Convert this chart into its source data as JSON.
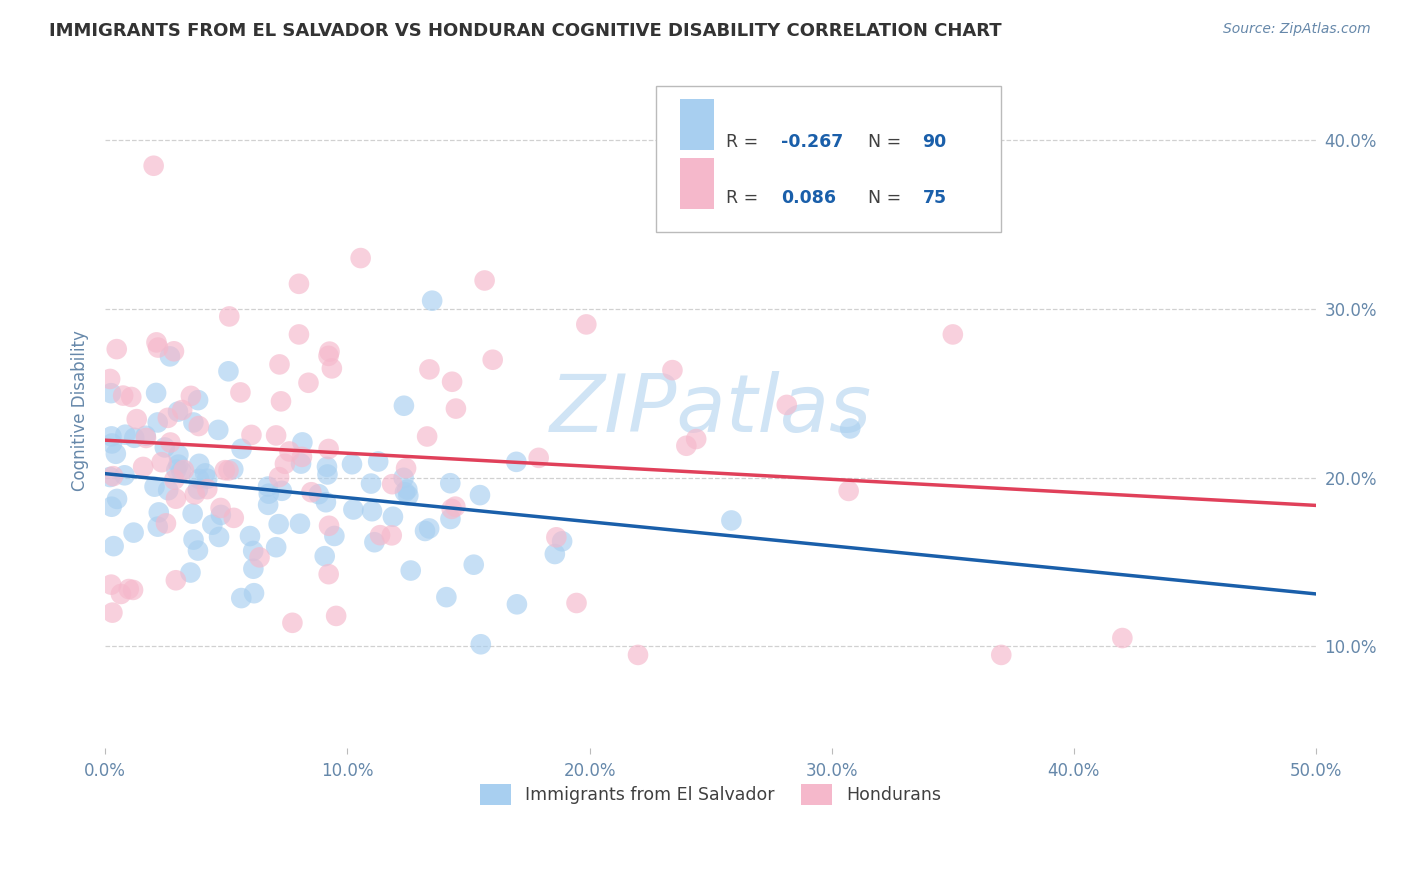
{
  "title": "IMMIGRANTS FROM EL SALVADOR VS HONDURAN COGNITIVE DISABILITY CORRELATION CHART",
  "source": "Source: ZipAtlas.com",
  "ylabel": "Cognitive Disability",
  "xlim": [
    0.0,
    0.5
  ],
  "ylim": [
    0.04,
    0.44
  ],
  "xtick_labels": [
    "0.0%",
    "10.0%",
    "20.0%",
    "30.0%",
    "40.0%",
    "50.0%"
  ],
  "xtick_vals": [
    0.0,
    0.1,
    0.2,
    0.3,
    0.4,
    0.5
  ],
  "ytick_labels": [
    "10.0%",
    "20.0%",
    "30.0%",
    "40.0%"
  ],
  "ytick_vals": [
    0.1,
    0.2,
    0.3,
    0.4
  ],
  "legend_labels": [
    "Immigrants from El Salvador",
    "Hondurans"
  ],
  "series1_color": "#a8cff0",
  "series2_color": "#f5b8cb",
  "series1_line_color": "#1a5faa",
  "series2_line_color": "#e0405a",
  "watermark": "ZIPatlas",
  "watermark_color": "#d0e4f5",
  "background_color": "#ffffff",
  "grid_color": "#cccccc",
  "title_color": "#333333",
  "axis_label_color": "#6688aa",
  "legend_r_color": "#1a5faa",
  "legend_label_color": "#404040",
  "r1": -0.267,
  "r2": 0.086,
  "n1": 90,
  "n2": 75
}
